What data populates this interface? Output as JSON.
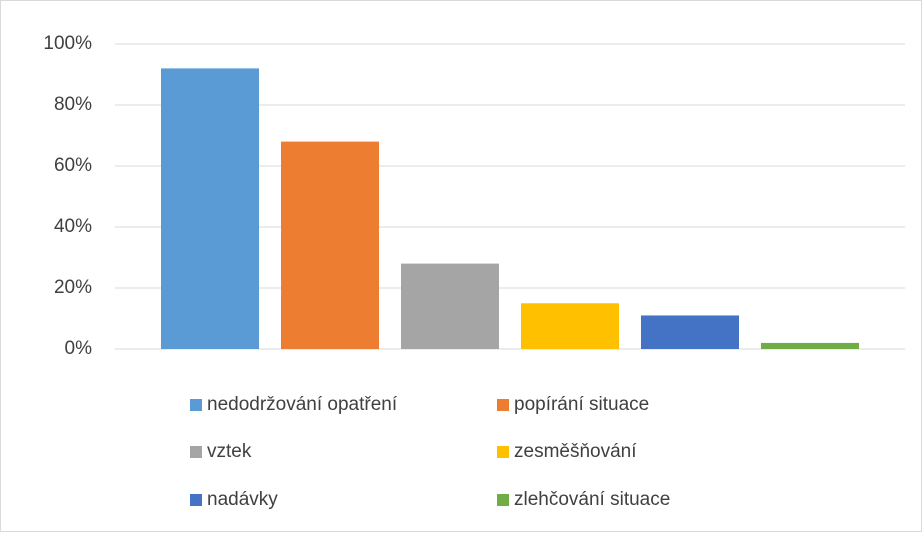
{
  "chart_data": {
    "type": "bar",
    "categories": [
      null
    ],
    "series": [
      {
        "name": "nedodržování opatření",
        "color": "#5b9bd5",
        "values": [
          92
        ]
      },
      {
        "name": "popírání situace",
        "color": "#ed7d31",
        "values": [
          68
        ]
      },
      {
        "name": "vztek",
        "color": "#a5a5a5",
        "values": [
          28
        ]
      },
      {
        "name": "zesměšňování",
        "color": "#ffc000",
        "values": [
          15
        ]
      },
      {
        "name": "nadávky",
        "color": "#4472c4",
        "values": [
          11
        ]
      },
      {
        "name": "zlehčování situace",
        "color": "#70ad47",
        "values": [
          2
        ]
      }
    ],
    "ylim": [
      0,
      100
    ],
    "yticks": [
      {
        "value": 0,
        "label": "0%"
      },
      {
        "value": 20,
        "label": "20%"
      },
      {
        "value": 40,
        "label": "40%"
      },
      {
        "value": 60,
        "label": "60%"
      },
      {
        "value": 80,
        "label": "80%"
      },
      {
        "value": 100,
        "label": "100%"
      }
    ],
    "grid": true,
    "legend": "bottom"
  }
}
